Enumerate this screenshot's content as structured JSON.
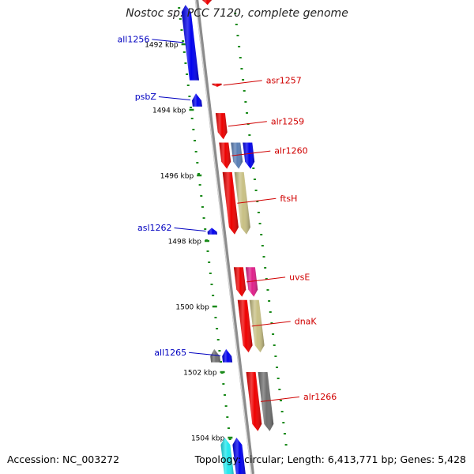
{
  "title": "Nostoc sp. PCC 7120, complete genome",
  "footer": {
    "accession": "Accession: NC_003272",
    "summary": "Topology: circular; Length: 6,413,771 bp; Genes: 5,428"
  },
  "colors": {
    "backbone": "#8c8c8c",
    "tick": "#1a8a1a",
    "label_left": "#0000c0",
    "label_right": "#d00000",
    "red": "#ee0000",
    "blue": "#0000ee",
    "steelblue": "#5a7fb5",
    "khaki": "#c8c084",
    "magenta": "#e0208a",
    "gray": "#707070",
    "cyan": "#22e8ee"
  },
  "scale": [
    {
      "kbp": 1492,
      "label": "1492 kbp"
    },
    {
      "kbp": 1494,
      "label": "1494 kbp"
    },
    {
      "kbp": 1496,
      "label": "1496 kbp"
    },
    {
      "kbp": 1498,
      "label": "1498 kbp"
    },
    {
      "kbp": 1500,
      "label": "1500 kbp"
    },
    {
      "kbp": 1502,
      "label": "1502 kbp"
    },
    {
      "kbp": 1504,
      "label": "1504 kbp"
    }
  ],
  "genes": [
    {
      "name": "",
      "strand": "+",
      "start": 1490.4,
      "end": 1490.8,
      "color": "red",
      "labeled": false
    },
    {
      "name": "all1256",
      "strand": "-",
      "start": 1490.8,
      "end": 1493.1,
      "color": "blue",
      "labeled": true
    },
    {
      "name": "asr1257",
      "strand": "+",
      "start": 1493.2,
      "end": 1493.3,
      "color": "red",
      "labeled": true
    },
    {
      "name": "psbZ",
      "strand": "-",
      "start": 1493.5,
      "end": 1493.9,
      "color": "blue",
      "labeled": true
    },
    {
      "name": "alr1259",
      "strand": "+",
      "start": 1494.1,
      "end": 1494.9,
      "color": "red",
      "labeled": true
    },
    {
      "name": "alr1260",
      "strand": "+",
      "start": 1495.0,
      "end": 1495.8,
      "color": "red",
      "labeled": true
    },
    {
      "name": "",
      "strand": "+",
      "start": 1495.0,
      "end": 1495.8,
      "color": "steelblue",
      "labeled": false,
      "lane": 2
    },
    {
      "name": "",
      "strand": "+",
      "start": 1495.0,
      "end": 1495.8,
      "color": "blue",
      "labeled": false,
      "lane": 3
    },
    {
      "name": "ftsH",
      "strand": "+",
      "start": 1495.9,
      "end": 1497.8,
      "color": "red",
      "labeled": true
    },
    {
      "name": "",
      "strand": "+",
      "start": 1495.9,
      "end": 1497.8,
      "color": "khaki",
      "labeled": false,
      "lane": 2
    },
    {
      "name": "asl1262",
      "strand": "-",
      "start": 1497.6,
      "end": 1497.8,
      "color": "blue",
      "labeled": true
    },
    {
      "name": "uvsE",
      "strand": "+",
      "start": 1498.8,
      "end": 1499.7,
      "color": "red",
      "labeled": true
    },
    {
      "name": "",
      "strand": "+",
      "start": 1498.8,
      "end": 1499.7,
      "color": "magenta",
      "labeled": false,
      "lane": 2
    },
    {
      "name": "dnaK",
      "strand": "+",
      "start": 1499.8,
      "end": 1501.4,
      "color": "red",
      "labeled": true
    },
    {
      "name": "",
      "strand": "+",
      "start": 1499.8,
      "end": 1501.4,
      "color": "khaki",
      "labeled": false,
      "lane": 2
    },
    {
      "name": "all1265",
      "strand": "-",
      "start": 1501.3,
      "end": 1501.7,
      "color": "blue",
      "labeled": true
    },
    {
      "name": "",
      "strand": "-",
      "start": 1501.3,
      "end": 1501.7,
      "color": "gray",
      "labeled": false,
      "lane": 2
    },
    {
      "name": "alr1266",
      "strand": "+",
      "start": 1502.0,
      "end": 1503.8,
      "color": "red",
      "labeled": true
    },
    {
      "name": "",
      "strand": "+",
      "start": 1502.0,
      "end": 1503.8,
      "color": "gray",
      "labeled": false,
      "lane": 2
    },
    {
      "name": "",
      "strand": "-",
      "start": 1504.0,
      "end": 1505.5,
      "color": "blue",
      "labeled": false
    },
    {
      "name": "",
      "strand": "-",
      "start": 1504.0,
      "end": 1505.5,
      "color": "cyan",
      "labeled": false,
      "lane": 2
    }
  ]
}
